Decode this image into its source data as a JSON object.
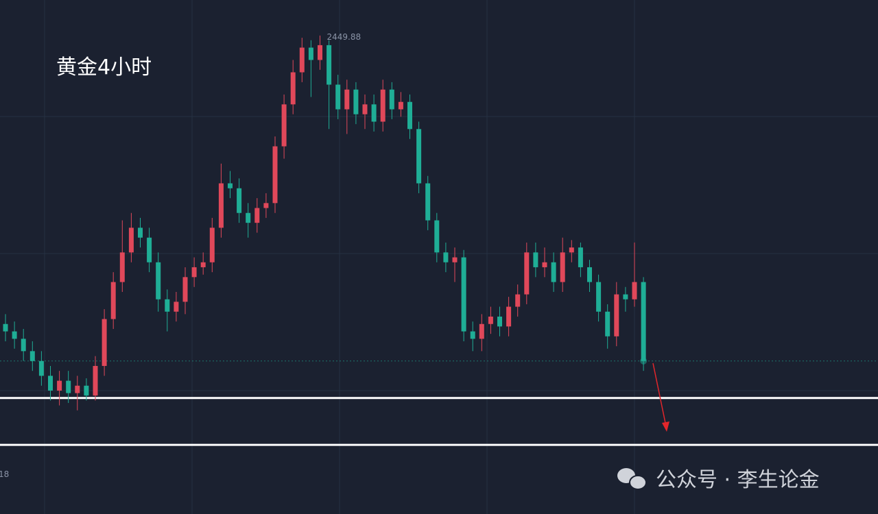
{
  "chart_data": {
    "type": "candlestick",
    "title": "黄金4小时",
    "time_label": "18",
    "watermark": "公众号 · 李生论金",
    "open": [
      2333,
      2330,
      2327,
      2322,
      2318,
      2312,
      2306,
      2310,
      2305,
      2308,
      2304,
      2316,
      2335,
      2350,
      2362,
      2372,
      2368,
      2358,
      2343,
      2338,
      2342,
      2352,
      2356,
      2358,
      2372,
      2390,
      2388,
      2378,
      2374,
      2380,
      2382,
      2405,
      2422,
      2435,
      2445,
      2440,
      2446,
      2430,
      2420,
      2428,
      2418,
      2422,
      2415,
      2428,
      2420,
      2423,
      2412,
      2390,
      2375,
      2362,
      2358,
      2360,
      2330,
      2327,
      2333,
      2336,
      2332,
      2340,
      2345,
      2362,
      2356,
      2358,
      2350,
      2362,
      2364,
      2356,
      2350,
      2338,
      2328,
      2345,
      2343,
      2350
    ],
    "high": [
      2337,
      2334,
      2331,
      2326,
      2322,
      2316,
      2314,
      2314,
      2312,
      2311,
      2320,
      2339,
      2354,
      2375,
      2378,
      2376,
      2372,
      2362,
      2347,
      2346,
      2356,
      2360,
      2362,
      2376,
      2398,
      2395,
      2392,
      2382,
      2384,
      2386,
      2409,
      2426,
      2440,
      2449,
      2448,
      2449.88,
      2448,
      2434,
      2432,
      2431,
      2426,
      2426,
      2432,
      2431,
      2427,
      2426,
      2415,
      2393,
      2378,
      2366,
      2364,
      2363,
      2334,
      2337,
      2340,
      2340,
      2344,
      2349,
      2366,
      2366,
      2364,
      2362,
      2368,
      2367,
      2366,
      2359,
      2353,
      2341,
      2350,
      2348,
      2366,
      2352
    ],
    "low": [
      2326,
      2323,
      2318,
      2314,
      2308,
      2302,
      2300,
      2301,
      2298,
      2302,
      2302,
      2312,
      2331,
      2346,
      2358,
      2364,
      2354,
      2338,
      2330,
      2334,
      2337,
      2348,
      2353,
      2354,
      2368,
      2384,
      2374,
      2368,
      2370,
      2376,
      2378,
      2400,
      2418,
      2431,
      2425,
      2436,
      2412,
      2416,
      2410,
      2414,
      2412,
      2411,
      2411,
      2416,
      2417,
      2408,
      2386,
      2371,
      2358,
      2354,
      2350,
      2326,
      2322,
      2322,
      2329,
      2328,
      2328,
      2336,
      2341,
      2352,
      2352,
      2346,
      2346,
      2358,
      2352,
      2346,
      2334,
      2323,
      2324,
      2338,
      2340,
      2314
    ],
    "close": [
      2330,
      2327,
      2322,
      2318,
      2312,
      2306,
      2310,
      2305,
      2308,
      2304,
      2316,
      2335,
      2350,
      2362,
      2372,
      2368,
      2358,
      2343,
      2338,
      2342,
      2352,
      2356,
      2358,
      2372,
      2390,
      2388,
      2378,
      2374,
      2380,
      2382,
      2405,
      2422,
      2435,
      2445,
      2440,
      2446,
      2430,
      2420,
      2428,
      2418,
      2422,
      2415,
      2428,
      2420,
      2423,
      2412,
      2390,
      2375,
      2362,
      2358,
      2360,
      2330,
      2327,
      2333,
      2336,
      2332,
      2340,
      2345,
      2362,
      2356,
      2358,
      2350,
      2362,
      2364,
      2356,
      2350,
      2338,
      2328,
      2345,
      2343,
      2350,
      2318
    ],
    "up_color": "#e0485a",
    "down_color": "#1fae96",
    "level_color": "#ffffff",
    "levels": [
      2303,
      2284
    ],
    "ylim": [
      2256,
      2464.3
    ]
  }
}
